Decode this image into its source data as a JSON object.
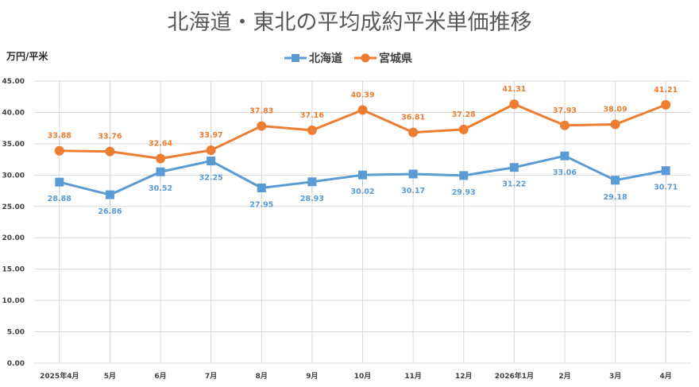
{
  "chart_data": {
    "type": "line",
    "title": "北海道・東北の平均成約平米単価推移",
    "ylabel": "万円/平米",
    "xlabel": "",
    "categories": [
      "2025年4月",
      "5月",
      "6月",
      "7月",
      "8月",
      "9月",
      "10月",
      "11月",
      "12月",
      "2026年1月",
      "2月",
      "3月",
      "4月"
    ],
    "ylim": [
      0,
      45
    ],
    "yticks": [
      "0.00",
      "5.00",
      "10.00",
      "15.00",
      "20.00",
      "25.00",
      "30.00",
      "35.00",
      "40.00",
      "45.00"
    ],
    "grid": true,
    "legend_position": "top",
    "series": [
      {
        "name": "北海道",
        "color": "#5b9bd5",
        "marker": "square",
        "values": [
          28.88,
          26.86,
          30.52,
          32.25,
          27.95,
          28.93,
          30.02,
          30.17,
          29.93,
          31.22,
          33.06,
          29.18,
          30.71
        ],
        "labels": [
          "28.88",
          "26.86",
          "30.52",
          "32.25",
          "27.95",
          "28.93",
          "30.02",
          "30.17",
          "29.93",
          "31.22",
          "33.06",
          "29.18",
          "30.71"
        ]
      },
      {
        "name": "宮城県",
        "color": "#ed7d31",
        "marker": "circle",
        "values": [
          33.88,
          33.76,
          32.64,
          33.97,
          37.83,
          37.16,
          40.39,
          36.81,
          37.28,
          41.31,
          37.93,
          38.09,
          41.21
        ],
        "labels": [
          "33.88",
          "33.76",
          "32.64",
          "33.97",
          "37.83",
          "37.16",
          "40.39",
          "36.81",
          "37.28",
          "41.31",
          "37.93",
          "38.09",
          "41.21"
        ]
      }
    ]
  }
}
